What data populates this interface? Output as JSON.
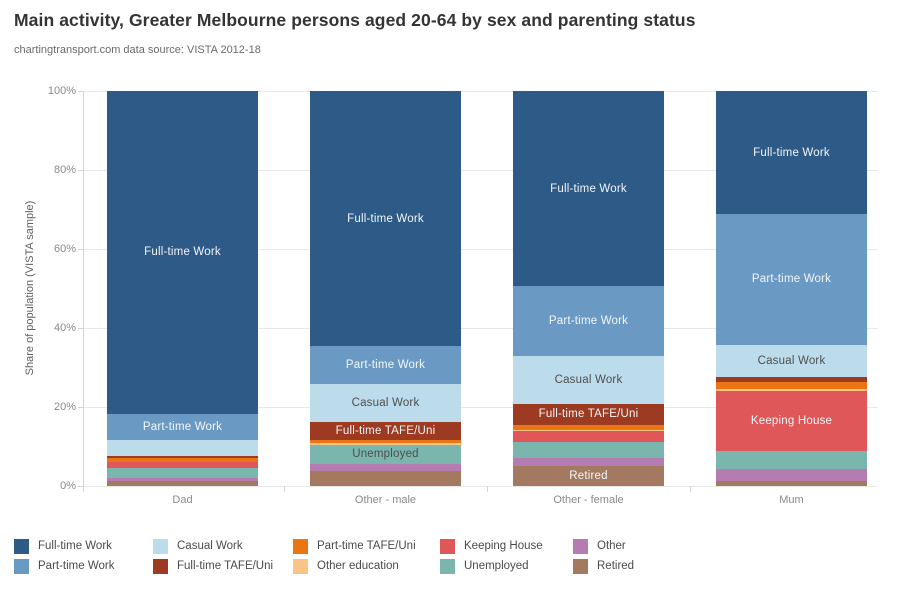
{
  "header": {
    "title": "Main activity, Greater Melbourne persons aged 20-64 by sex and parenting status",
    "subtitle": "chartingtransport.com  data source: VISTA 2012-18"
  },
  "axes": {
    "y_title": "Share of population (VISTA sample)",
    "y_tick_values": [
      100,
      80,
      60,
      40,
      20,
      0
    ],
    "y_tick_labels": [
      "100%",
      "80%",
      "60%",
      "40%",
      "20%",
      "0%"
    ],
    "x_labels": [
      "Dad",
      "Other - male",
      "Other - female",
      "Mum"
    ]
  },
  "chart_data": {
    "type": "bar",
    "stacked": true,
    "title": "Main activity, Greater Melbourne persons aged 20-64 by sex and parenting status",
    "xlabel": "",
    "ylabel": "Share of population (VISTA sample)",
    "ylim": [
      0,
      100
    ],
    "grid": true,
    "unit": "percent",
    "categories": [
      "Dad",
      "Other - male",
      "Other - female",
      "Mum"
    ],
    "series_bottom_to_top": [
      {
        "name": "Retired",
        "color": "#a37a60",
        "values": [
          1.3,
          3.9,
          5.0,
          1.3
        ]
      },
      {
        "name": "Other",
        "color": "#b47cb1",
        "values": [
          0.8,
          1.7,
          2.1,
          3.0
        ]
      },
      {
        "name": "Unemployed",
        "color": "#7ab6ad",
        "values": [
          2.4,
          4.8,
          4.1,
          4.6
        ]
      },
      {
        "name": "Keeping House",
        "color": "#e05759",
        "values": [
          1.5,
          0.0,
          2.9,
          15.1
        ]
      },
      {
        "name": "Other education",
        "color": "#f9c484",
        "values": [
          0.0,
          0.4,
          0.2,
          0.6
        ]
      },
      {
        "name": "Part-time TAFE/Uni",
        "color": "#eb7515",
        "values": [
          1.0,
          0.9,
          1.2,
          1.7
        ]
      },
      {
        "name": "Full-time TAFE/Uni",
        "color": "#9c3a22",
        "values": [
          0.7,
          4.5,
          5.3,
          1.4
        ]
      },
      {
        "name": "Casual Work",
        "color": "#bcdcec",
        "values": [
          4.0,
          9.7,
          12.0,
          8.1
        ]
      },
      {
        "name": "Part-time Work",
        "color": "#6a9ac4",
        "values": [
          6.6,
          9.5,
          17.8,
          33.0
        ]
      },
      {
        "name": "Full-time Work",
        "color": "#2e5a87",
        "values": [
          81.7,
          64.6,
          49.4,
          31.2
        ]
      }
    ],
    "segment_labels": [
      {
        "category": 0,
        "series": "Full-time Work",
        "tone": "light"
      },
      {
        "category": 0,
        "series": "Part-time Work",
        "tone": "light"
      },
      {
        "category": 1,
        "series": "Full-time Work",
        "tone": "light"
      },
      {
        "category": 1,
        "series": "Part-time Work",
        "tone": "light"
      },
      {
        "category": 1,
        "series": "Casual Work",
        "tone": "dark"
      },
      {
        "category": 1,
        "series": "Full-time TAFE/Uni",
        "tone": "light"
      },
      {
        "category": 1,
        "series": "Unemployed",
        "tone": "dark"
      },
      {
        "category": 2,
        "series": "Full-time Work",
        "tone": "light"
      },
      {
        "category": 2,
        "series": "Part-time Work",
        "tone": "light"
      },
      {
        "category": 2,
        "series": "Casual Work",
        "tone": "dark"
      },
      {
        "category": 2,
        "series": "Full-time TAFE/Uni",
        "tone": "light"
      },
      {
        "category": 2,
        "series": "Retired",
        "tone": "light"
      },
      {
        "category": 3,
        "series": "Full-time Work",
        "tone": "light"
      },
      {
        "category": 3,
        "series": "Part-time Work",
        "tone": "light"
      },
      {
        "category": 3,
        "series": "Casual Work",
        "tone": "dark"
      },
      {
        "category": 3,
        "series": "Keeping House",
        "tone": "light"
      }
    ],
    "legend_position": "bottom"
  },
  "legend": {
    "columns": [
      [
        {
          "label": "Full-time Work",
          "color": "#2e5a87"
        },
        {
          "label": "Part-time Work",
          "color": "#6a9ac4"
        }
      ],
      [
        {
          "label": "Casual Work",
          "color": "#bcdcec"
        },
        {
          "label": "Full-time TAFE/Uni",
          "color": "#9c3a22"
        }
      ],
      [
        {
          "label": "Part-time TAFE/Uni",
          "color": "#eb7515"
        },
        {
          "label": "Other education",
          "color": "#f9c484"
        }
      ],
      [
        {
          "label": "Keeping House",
          "color": "#e05759"
        },
        {
          "label": "Unemployed",
          "color": "#7ab6ad"
        }
      ],
      [
        {
          "label": "Other",
          "color": "#b47cb1"
        },
        {
          "label": "Retired",
          "color": "#a37a60"
        }
      ]
    ]
  },
  "colors": {
    "grid": "#e8e8e8",
    "axis": "#d5d5d5",
    "tick_text": "#8a8a8a",
    "title_text": "#343434",
    "subtitle_text": "#6b6b6b"
  }
}
